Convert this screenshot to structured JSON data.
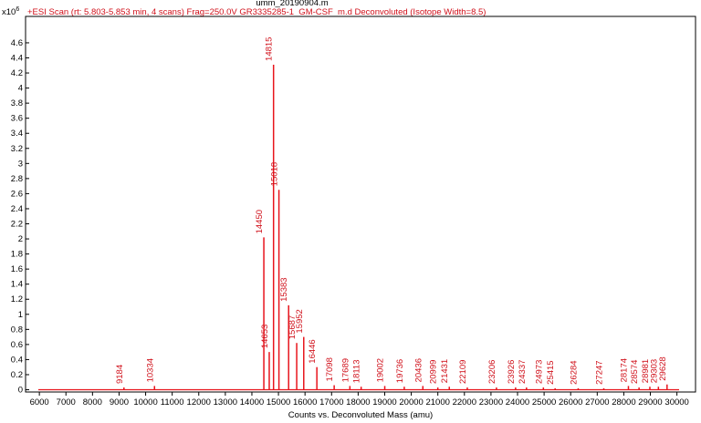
{
  "chart_data": {
    "type": "spectrum",
    "title": "umm_20190904.m",
    "subtitle": "+ESI Scan (rt: 5.803-5.853 min, 4 scans) Frag=250.0V GR3335285-1_GM-CSF_m.d  Deconvoluted (Isotope Width=8.5)",
    "y_scale_label": "x10",
    "y_scale_exponent": "6",
    "x_label": "Counts vs. Deconvoluted Mass (amu)",
    "color": "#e8141c",
    "x": [
      9184,
      10334,
      14450,
      14653,
      14815,
      15018,
      15383,
      15687,
      15952,
      16446,
      17098,
      17689,
      18113,
      19002,
      19736,
      20436,
      20999,
      21431,
      22109,
      23206,
      23926,
      24337,
      24973,
      25415,
      26284,
      27247,
      28174,
      28574,
      28981,
      29303,
      29628
    ],
    "values": [
      0.03,
      0.05,
      2.02,
      0.5,
      4.31,
      2.65,
      1.12,
      0.62,
      0.7,
      0.3,
      0.06,
      0.05,
      0.04,
      0.05,
      0.04,
      0.05,
      0.03,
      0.04,
      0.03,
      0.03,
      0.03,
      0.03,
      0.03,
      0.02,
      0.02,
      0.02,
      0.05,
      0.03,
      0.04,
      0.04,
      0.07
    ],
    "xlim": [
      5480,
      30700
    ],
    "ylim": [
      -0.03,
      4.95
    ],
    "xticks": [
      6000,
      7000,
      8000,
      9000,
      10000,
      11000,
      12000,
      13000,
      14000,
      15000,
      16000,
      17000,
      18000,
      19000,
      20000,
      21000,
      22000,
      23000,
      24000,
      25000,
      26000,
      27000,
      28000,
      29000,
      30000
    ],
    "yticks": [
      0,
      0.2,
      0.4,
      0.6,
      0.8,
      1,
      1.2,
      1.4,
      1.6,
      1.8,
      2,
      2.2,
      2.4,
      2.6,
      2.8,
      3,
      3.2,
      3.4,
      3.6,
      3.8,
      4,
      4.2,
      4.4,
      4.6
    ],
    "grid": false
  }
}
